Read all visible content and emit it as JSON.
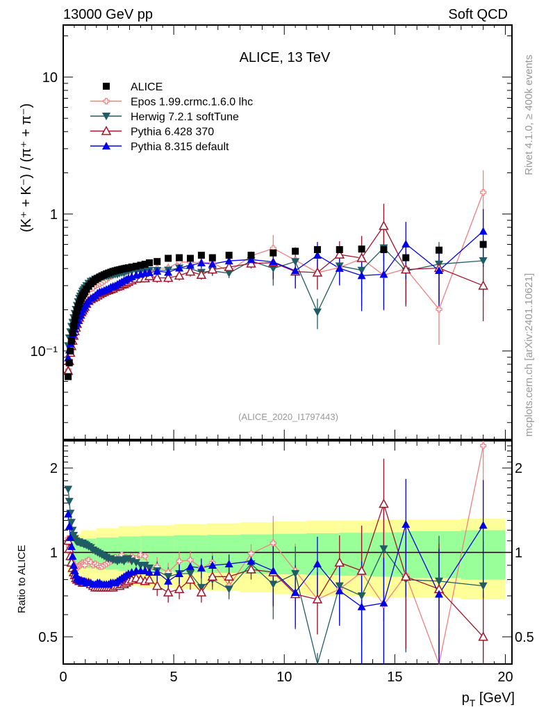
{
  "header": {
    "left": "13000 GeV pp",
    "right": "Soft QCD"
  },
  "side_labels": {
    "rivet": "Rivet 4.1.0, ≥ 400k events",
    "mcplots": "mcplots.cern.ch [arXiv:2401.10621]"
  },
  "chart_data": [
    {
      "panel": "main",
      "type": "scatter",
      "title": "ALICE, 13 TeV",
      "xlabel": "",
      "ylabel": "(K⁺ + K⁻) / (π⁺ + π⁻)",
      "yscale": "log",
      "xlim": [
        0,
        20.3
      ],
      "ylim": [
        0.0226,
        24
      ],
      "ytick_labels": [
        "10⁻¹",
        "1",
        "10"
      ],
      "ytick_values": [
        0.1,
        1,
        10
      ],
      "analysis_id": "(ALICE_2020_I1797443)",
      "legend_position": "top-left",
      "legend": [
        {
          "name": "ALICE",
          "color": "#000000",
          "marker": "square-filled"
        },
        {
          "name": "Epos 1.99.crmc.1.6.0 lhc",
          "color": "#f08080",
          "marker": "cross-open"
        },
        {
          "name": "Herwig 7.2.1 softTune",
          "color": "#1f5c63",
          "marker": "triangle-down-filled"
        },
        {
          "name": "Pythia 6.428 370",
          "color": "#a0142a",
          "marker": "triangle-up-open"
        },
        {
          "name": "Pythia 8.315 default",
          "color": "#0000e6",
          "marker": "triangle-up-filled"
        }
      ],
      "x": [
        0.225,
        0.275,
        0.325,
        0.375,
        0.425,
        0.475,
        0.525,
        0.575,
        0.625,
        0.675,
        0.725,
        0.775,
        0.825,
        0.875,
        0.925,
        0.975,
        1.05,
        1.15,
        1.25,
        1.35,
        1.45,
        1.55,
        1.65,
        1.75,
        1.85,
        1.95,
        2.05,
        2.15,
        2.25,
        2.35,
        2.45,
        2.55,
        2.65,
        2.75,
        2.85,
        2.95,
        3.1,
        3.3,
        3.5,
        3.7,
        3.9,
        4.25,
        4.75,
        5.25,
        5.75,
        6.25,
        6.75,
        7.5,
        8.5,
        9.5,
        10.5,
        11.5,
        12.5,
        13.5,
        14.5,
        15.5,
        17.0,
        19.0
      ],
      "series": [
        {
          "name": "ALICE",
          "values": [
            0.065,
            0.082,
            0.1,
            0.118,
            0.135,
            0.152,
            0.168,
            0.183,
            0.197,
            0.21,
            0.222,
            0.233,
            0.243,
            0.253,
            0.262,
            0.27,
            0.283,
            0.297,
            0.31,
            0.321,
            0.331,
            0.339,
            0.347,
            0.354,
            0.36,
            0.366,
            0.371,
            0.376,
            0.381,
            0.385,
            0.389,
            0.392,
            0.396,
            0.399,
            0.402,
            0.405,
            0.41,
            0.416,
            0.423,
            0.43,
            0.44,
            0.45,
            0.475,
            0.48,
            0.475,
            0.5,
            0.48,
            0.5,
            0.5,
            0.52,
            0.535,
            0.55,
            0.55,
            0.555,
            0.55,
            0.48,
            0.545,
            0.6
          ]
        },
        {
          "name": "Epos 1.99.crmc.1.6.0 lhc",
          "ratio": [
            1.12,
            1.05,
            1.0,
            0.95,
            0.92,
            0.9,
            0.89,
            0.88,
            0.88,
            0.89,
            0.9,
            0.9,
            0.91,
            0.92,
            0.91,
            0.9,
            0.93,
            0.94,
            0.92,
            0.9,
            0.91,
            0.9,
            0.89,
            0.89,
            0.9,
            0.91,
            0.92,
            0.93,
            0.95,
            0.96,
            0.95,
            0.96,
            0.98,
            0.95,
            0.96,
            0.94,
            0.97,
            0.95,
            0.98,
            0.97,
            0.88,
            0.89,
            0.85,
            0.93,
            0.94,
            0.88,
            0.92,
            0.76,
            0.99,
            1.08,
            0.86,
            0.68,
            0.74,
            0.85,
            0.65,
            0.83,
            0.37,
            2.4
          ]
        },
        {
          "name": "Herwig 7.2.1 softTune",
          "ratio": [
            1.68,
            1.52,
            1.38,
            1.28,
            1.2,
            1.15,
            1.12,
            1.1,
            1.09,
            1.09,
            1.09,
            1.08,
            1.08,
            1.08,
            1.07,
            1.07,
            1.06,
            1.05,
            1.04,
            1.02,
            1.01,
            1.0,
            0.99,
            0.98,
            0.97,
            0.96,
            0.95,
            0.95,
            0.94,
            0.94,
            0.93,
            0.94,
            0.94,
            0.93,
            0.95,
            0.95,
            0.93,
            0.92,
            0.9,
            0.9,
            0.88,
            0.86,
            0.82,
            0.84,
            0.84,
            0.75,
            0.8,
            0.74,
            0.91,
            0.77,
            0.84,
            0.35,
            0.76,
            0.7,
            1.03,
            0.8,
            0.79,
            0.76
          ]
        },
        {
          "name": "Pythia 6.428 370",
          "ratio": [
            1.1,
            1.03,
            0.97,
            0.92,
            0.88,
            0.85,
            0.83,
            0.81,
            0.8,
            0.8,
            0.79,
            0.79,
            0.79,
            0.78,
            0.78,
            0.78,
            0.78,
            0.78,
            0.77,
            0.76,
            0.75,
            0.75,
            0.75,
            0.75,
            0.75,
            0.75,
            0.75,
            0.75,
            0.75,
            0.76,
            0.76,
            0.76,
            0.77,
            0.77,
            0.78,
            0.79,
            0.8,
            0.81,
            0.8,
            0.79,
            0.8,
            0.76,
            0.72,
            0.74,
            0.8,
            0.72,
            0.82,
            0.82,
            0.87,
            0.85,
            0.71,
            0.68,
            0.92,
            0.86,
            1.49,
            0.82,
            0.74,
            0.5
          ]
        },
        {
          "name": "Pythia 8.315 default",
          "ratio": [
            1.37,
            1.24,
            1.13,
            1.05,
            0.97,
            0.9,
            0.86,
            0.83,
            0.81,
            0.8,
            0.8,
            0.79,
            0.79,
            0.79,
            0.79,
            0.79,
            0.78,
            0.78,
            0.78,
            0.77,
            0.77,
            0.78,
            0.78,
            0.77,
            0.77,
            0.77,
            0.77,
            0.78,
            0.78,
            0.78,
            0.79,
            0.8,
            0.81,
            0.82,
            0.83,
            0.84,
            0.85,
            0.86,
            0.86,
            0.86,
            0.85,
            0.85,
            0.79,
            0.84,
            0.89,
            0.88,
            0.9,
            0.91,
            0.93,
            0.86,
            0.72,
            0.91,
            0.73,
            0.64,
            0.66,
            1.26,
            0.71,
            1.25
          ]
        }
      ]
    },
    {
      "panel": "ratio",
      "type": "scatter",
      "xlabel": "p_T [GeV]",
      "ylabel": "Ratio to ALICE",
      "yscale": "log",
      "xlim": [
        0,
        20.3
      ],
      "ylim": [
        0.4,
        2.5
      ],
      "xtick_labels": [
        "0",
        "5",
        "10",
        "15",
        "20"
      ],
      "xtick_values": [
        0,
        5,
        10,
        15,
        20
      ],
      "ytick_labels": [
        "0.5",
        "1",
        "2"
      ],
      "ytick_values": [
        0.5,
        1,
        2
      ],
      "band_inner_rel": [
        0.1,
        0.12,
        0.13,
        0.14,
        0.145,
        0.15,
        0.155,
        0.16,
        0.165,
        0.17,
        0.175,
        0.18,
        0.19,
        0.2,
        0.21
      ],
      "band_outer_rel": [
        0.16,
        0.2,
        0.22,
        0.24,
        0.25,
        0.26,
        0.27,
        0.28,
        0.29,
        0.3,
        0.3,
        0.31,
        0.31,
        0.32,
        0.32
      ],
      "band_x_edges": [
        0.2,
        0.8,
        1.5,
        2.5,
        3.5,
        5,
        6.5,
        8,
        9.5,
        11,
        12.5,
        14,
        15.5,
        18,
        20
      ]
    }
  ]
}
